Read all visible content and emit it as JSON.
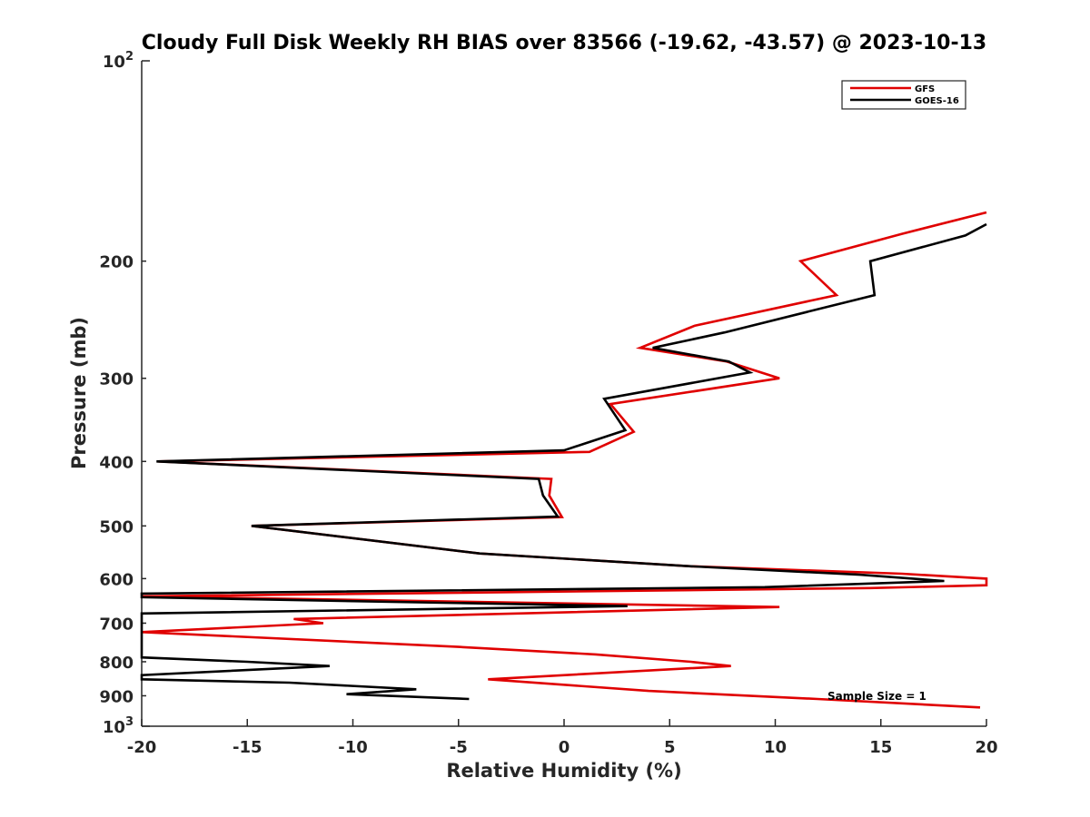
{
  "chart_data": {
    "type": "line",
    "title": "Cloudy Full Disk Weekly RH BIAS over 83566 (-19.62, -43.57) @ 2023-10-13",
    "xlabel": "Relative Humidity (%)",
    "ylabel": "Pressure (mb)",
    "xlim": [
      -20,
      20
    ],
    "ylim": [
      100,
      1000
    ],
    "y_scale": "log",
    "y_reversed": true,
    "grid": false,
    "legend_position": "top-right",
    "x_ticks": [
      -20,
      -15,
      -10,
      -5,
      0,
      5,
      10,
      15,
      20
    ],
    "x_tick_labels": [
      "-20",
      "-15",
      "-10",
      "-5",
      "0",
      "5",
      "10",
      "15",
      "20"
    ],
    "y_ticks": [
      200,
      300,
      400,
      500,
      600,
      700,
      800,
      900
    ],
    "y_tick_labels": [
      "200",
      "300",
      "400",
      "500",
      "600",
      "700",
      "800",
      "900"
    ],
    "y_limit_labels": [
      {
        "value": 100,
        "base": "10",
        "exp": "2"
      },
      {
        "value": 1000,
        "base": "10",
        "exp": "3"
      }
    ],
    "annotation": "Sample Size = 1",
    "series": [
      {
        "name": "GFS",
        "color": "#e00000",
        "points": [
          [
            20,
            169
          ],
          [
            16,
            182
          ],
          [
            11.2,
            200
          ],
          [
            12.9,
            225
          ],
          [
            6.2,
            250
          ],
          [
            3.6,
            270
          ],
          [
            7.7,
            283
          ],
          [
            10.2,
            300
          ],
          [
            2.2,
            328
          ],
          [
            3.3,
            361
          ],
          [
            1.2,
            387
          ],
          [
            -19.2,
            400
          ],
          [
            -0.6,
            425
          ],
          [
            -0.7,
            450
          ],
          [
            -0.1,
            485
          ],
          [
            -14.8,
            500
          ],
          [
            -4,
            550
          ],
          [
            6,
            575
          ],
          [
            16,
            590
          ],
          [
            20,
            600
          ],
          [
            20,
            614
          ],
          [
            14.5,
            620
          ],
          [
            -20,
            638
          ],
          [
            10.2,
            662
          ],
          [
            -12.8,
            690
          ],
          [
            -11.4,
            700
          ],
          [
            -20,
            722
          ],
          [
            -5,
            760
          ],
          [
            1.5,
            780
          ],
          [
            6,
            800
          ],
          [
            7.9,
            812
          ],
          [
            -3.6,
            850
          ],
          [
            4,
            885
          ],
          [
            12,
            910
          ],
          [
            19.7,
            937
          ]
        ]
      },
      {
        "name": "GOES-16",
        "color": "#000000",
        "points": [
          [
            20,
            176
          ],
          [
            19,
            183
          ],
          [
            14.5,
            200
          ],
          [
            14.7,
            225
          ],
          [
            7.6,
            256
          ],
          [
            4.2,
            270
          ],
          [
            7.8,
            283
          ],
          [
            8.8,
            294
          ],
          [
            1.9,
            322
          ],
          [
            2.9,
            359
          ],
          [
            0,
            385
          ],
          [
            -19.3,
            400
          ],
          [
            -1.2,
            425
          ],
          [
            -1,
            450
          ],
          [
            -0.3,
            484
          ],
          [
            -14.8,
            500
          ],
          [
            -4,
            550
          ],
          [
            6,
            575
          ],
          [
            14,
            592
          ],
          [
            18,
            605
          ],
          [
            9.5,
            618
          ],
          [
            -20,
            632
          ],
          [
            -20,
            640
          ],
          [
            3,
            660
          ],
          [
            -20,
            677
          ],
          [
            -20,
            788
          ],
          [
            -15,
            800
          ],
          [
            -11.1,
            812
          ],
          [
            -20,
            838
          ],
          [
            -20,
            850
          ],
          [
            -13,
            860
          ],
          [
            -7,
            880
          ],
          [
            -10.3,
            895
          ],
          [
            -4.5,
            910
          ]
        ]
      }
    ]
  }
}
